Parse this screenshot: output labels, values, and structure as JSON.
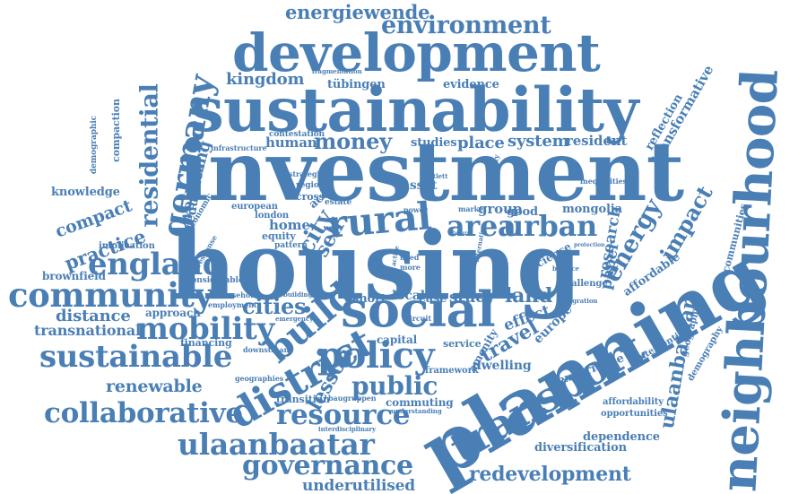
{
  "cloud": {
    "color": "#4a7fb5",
    "words": [
      {
        "id": "housing",
        "text": "housing"
      },
      {
        "id": "investment",
        "text": "investment"
      },
      {
        "id": "sustainability",
        "text": "sustainability"
      },
      {
        "id": "planning",
        "text": "planning"
      },
      {
        "id": "development",
        "text": "development"
      },
      {
        "id": "neighbourhood",
        "text": "neighbourhood"
      },
      {
        "id": "transport",
        "text": "transport"
      },
      {
        "id": "social",
        "text": "social"
      },
      {
        "id": "community",
        "text": "community"
      },
      {
        "id": "sustainable",
        "text": "sustainable"
      },
      {
        "id": "district",
        "text": "district"
      },
      {
        "id": "policy",
        "text": "policy"
      },
      {
        "id": "rural",
        "text": "rural"
      },
      {
        "id": "area",
        "text": "area"
      },
      {
        "id": "urban",
        "text": "urban"
      },
      {
        "id": "germany",
        "text": "germany"
      },
      {
        "id": "england",
        "text": "england"
      },
      {
        "id": "mobility",
        "text": "mobility"
      },
      {
        "id": "environment",
        "text": "environment"
      },
      {
        "id": "ulaanbaatar",
        "text": "ulaanbaatar"
      },
      {
        "id": "governance",
        "text": "governance"
      },
      {
        "id": "collaborative",
        "text": "collaborative"
      },
      {
        "id": "resource",
        "text": "resource"
      },
      {
        "id": "redevelopment",
        "text": "redevelopment"
      },
      {
        "id": "money",
        "text": "money"
      },
      {
        "id": "build",
        "text": "build"
      },
      {
        "id": "residential",
        "text": "residential"
      },
      {
        "id": "energiewende",
        "text": "energiewende"
      },
      {
        "id": "underutilised",
        "text": "underutilised"
      },
      {
        "id": "renewable",
        "text": "renewable"
      },
      {
        "id": "public",
        "text": "public"
      },
      {
        "id": "energy",
        "text": "energy"
      },
      {
        "id": "impact",
        "text": "impact"
      },
      {
        "id": "ulaanbataar",
        "text": "ulaanbataar"
      },
      {
        "id": "kingdom",
        "text": "kingdom"
      },
      {
        "id": "practice",
        "text": "practice"
      },
      {
        "id": "system",
        "text": "system"
      },
      {
        "id": "place",
        "text": "place"
      },
      {
        "id": "cities",
        "text": "cities"
      },
      {
        "id": "lesson",
        "text": "lesson"
      },
      {
        "id": "travel",
        "text": "travel"
      },
      {
        "id": "distance",
        "text": "distance"
      },
      {
        "id": "transnational",
        "text": "transnational"
      },
      {
        "id": "knowledge",
        "text": "knowledge"
      },
      {
        "id": "compact",
        "text": "compact"
      },
      {
        "id": "wellbeing",
        "text": "wellbeing"
      },
      {
        "id": "reduction",
        "text": "reduction"
      },
      {
        "id": "human",
        "text": "human"
      },
      {
        "id": "resident",
        "text": "resident"
      },
      {
        "id": "studies",
        "text": "studies"
      },
      {
        "id": "evidence",
        "text": "evidence"
      },
      {
        "id": "tubingen",
        "text": "tübingen"
      },
      {
        "id": "transformative",
        "text": "transformative"
      },
      {
        "id": "reflection",
        "text": "reflection"
      },
      {
        "id": "research",
        "text": "research"
      },
      {
        "id": "paper",
        "text": "paper"
      },
      {
        "id": "affordable",
        "text": "affordable"
      },
      {
        "id": "communities",
        "text": "communities"
      },
      {
        "id": "diversification",
        "text": "diversification"
      },
      {
        "id": "dependence",
        "text": "dependence"
      },
      {
        "id": "affordability",
        "text": "affordability"
      },
      {
        "id": "opportunities",
        "text": "opportunities"
      },
      {
        "id": "experience",
        "text": "experience"
      },
      {
        "id": "brownfield",
        "text": "brownfield"
      },
      {
        "id": "approach",
        "text": "approach"
      },
      {
        "id": "city",
        "text": "city"
      },
      {
        "id": "land",
        "text": "land"
      },
      {
        "id": "study",
        "text": "study"
      },
      {
        "id": "case",
        "text": "case"
      },
      {
        "id": "local",
        "text": "local"
      },
      {
        "id": "short",
        "text": "short"
      },
      {
        "id": "group",
        "text": "group"
      },
      {
        "id": "good",
        "text": "good"
      },
      {
        "id": "mongolia",
        "text": "mongolia"
      },
      {
        "id": "effect",
        "text": "effect"
      },
      {
        "id": "europe",
        "text": "europe"
      },
      {
        "id": "capital",
        "text": "capital"
      },
      {
        "id": "service",
        "text": "service"
      },
      {
        "id": "commuting",
        "text": "commuting"
      },
      {
        "id": "dwelling",
        "text": "dwelling"
      },
      {
        "id": "framework",
        "text": "framework"
      },
      {
        "id": "compaction",
        "text": "compaction"
      },
      {
        "id": "demographic",
        "text": "demographic"
      },
      {
        "id": "implication",
        "text": "implication"
      },
      {
        "id": "economic",
        "text": "economic"
      },
      {
        "id": "response",
        "text": "response"
      },
      {
        "id": "considerable",
        "text": "considerable"
      },
      {
        "id": "employment",
        "text": "employment"
      },
      {
        "id": "household",
        "text": "household"
      },
      {
        "id": "financing",
        "text": "financing"
      },
      {
        "id": "london",
        "text": "london"
      },
      {
        "id": "home",
        "text": "home"
      },
      {
        "id": "equity",
        "text": "equity"
      },
      {
        "id": "european",
        "text": "european"
      },
      {
        "id": "region",
        "text": "region"
      },
      {
        "id": "contestation",
        "text": "contestation"
      },
      {
        "id": "infrastructure",
        "text": "infrastructure"
      },
      {
        "id": "fragmentation",
        "text": "fragmentation"
      },
      {
        "id": "inequalities",
        "text": "inequalities"
      },
      {
        "id": "science",
        "text": "science"
      },
      {
        "id": "challenge",
        "text": "challenge"
      },
      {
        "id": "integration",
        "text": "integration"
      },
      {
        "id": "intervention",
        "text": "intervention"
      },
      {
        "id": "geography",
        "text": "geography"
      },
      {
        "id": "demography",
        "text": "demography"
      },
      {
        "id": "transition",
        "text": "transition"
      },
      {
        "id": "baugruppen",
        "text": "baugruppen"
      },
      {
        "id": "interdisciplinary",
        "text": "interdisciplinary"
      },
      {
        "id": "self",
        "text": "self"
      },
      {
        "id": "cross",
        "text": "cross"
      },
      {
        "id": "asset",
        "text": "asset"
      },
      {
        "id": "estate",
        "text": "estate"
      },
      {
        "id": "pattern",
        "text": "pattern"
      },
      {
        "id": "market",
        "text": "market"
      },
      {
        "id": "amenity",
        "text": "amenity"
      },
      {
        "id": "balance",
        "text": "balance"
      },
      {
        "id": "protection",
        "text": "protection"
      },
      {
        "id": "circuit",
        "text": "circuit"
      },
      {
        "id": "downstream",
        "text": "downstream"
      },
      {
        "id": "geographies",
        "text": "geographies"
      },
      {
        "id": "building",
        "text": "building"
      },
      {
        "id": "understanding",
        "text": "understanding"
      },
      {
        "id": "future",
        "text": "future"
      },
      {
        "id": "alternative",
        "text": "alternative"
      },
      {
        "id": "active",
        "text": "active"
      },
      {
        "id": "need",
        "text": "need"
      },
      {
        "id": "more",
        "text": "more"
      },
      {
        "id": "power",
        "text": "power"
      },
      {
        "id": "strategies",
        "text": "strategies"
      },
      {
        "id": "university",
        "text": "university"
      },
      {
        "id": "bartlett",
        "text": "bartlett"
      },
      {
        "id": "emergency",
        "text": "emergency"
      },
      {
        "id": "acc",
        "text": "acc"
      }
    ]
  }
}
